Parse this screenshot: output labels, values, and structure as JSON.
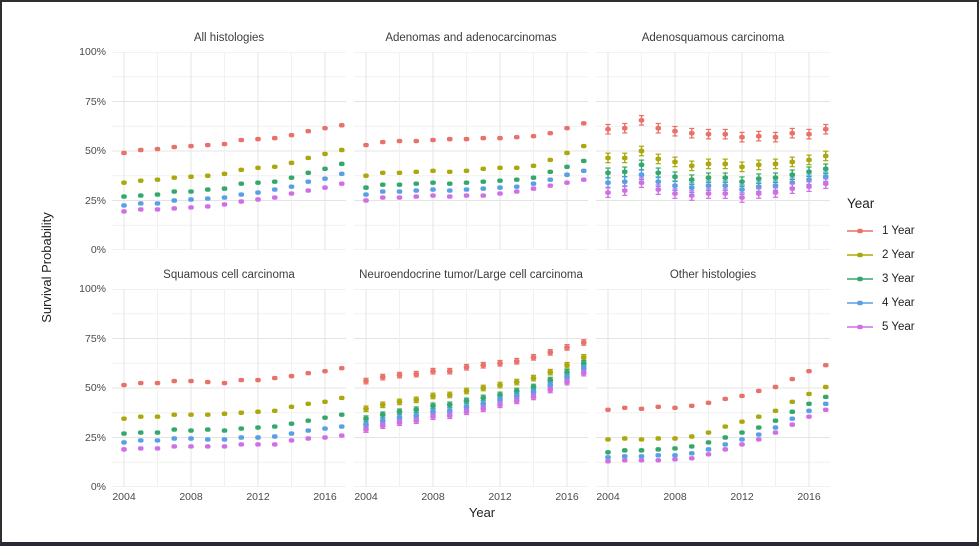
{
  "axes": {
    "y_label": "Survival Probability",
    "x_label": "Year",
    "y_tick_labels": [
      "100%",
      "75%",
      "50%",
      "25%",
      "0%"
    ],
    "x_tick_labels": [
      "2004",
      "2008",
      "2012",
      "2016"
    ]
  },
  "legend": {
    "title": "Year",
    "items": [
      {
        "label": "1 Year",
        "color": "#E8716A"
      },
      {
        "label": "2 Year",
        "color": "#ABA80D"
      },
      {
        "label": "3 Year",
        "color": "#34A76C"
      },
      {
        "label": "4 Year",
        "color": "#56A0E3"
      },
      {
        "label": "5 Year",
        "color": "#CF6FE4"
      }
    ]
  },
  "chart_data": {
    "type": "scatter",
    "x": [
      2004,
      2005,
      2006,
      2007,
      2008,
      2009,
      2010,
      2011,
      2012,
      2013,
      2014,
      2015,
      2016,
      2017
    ],
    "x_major_ticks": [
      2004,
      2008,
      2012,
      2016
    ],
    "ylim": [
      0,
      100
    ],
    "y_major_step": 25,
    "y_minor_step": 12.5,
    "grid": true,
    "legend_position": "right",
    "panels": [
      {
        "title": "All histologies",
        "row": 0,
        "col": 0,
        "error": 0,
        "series": [
          {
            "name": "1 Year",
            "values": [
              49,
              50.5,
              51,
              52,
              52.5,
              53,
              53.5,
              55.5,
              56,
              56.5,
              58,
              60,
              61.5,
              63
            ]
          },
          {
            "name": "2 Year",
            "values": [
              34,
              35,
              35.5,
              36.5,
              37,
              37.5,
              38.5,
              40.5,
              41.5,
              42,
              44,
              46.5,
              48.5,
              50.5
            ]
          },
          {
            "name": "3 Year",
            "values": [
              27,
              27.5,
              28,
              29.5,
              29.5,
              30.5,
              31,
              33.5,
              34,
              34.5,
              36.5,
              39,
              41,
              43.5
            ]
          },
          {
            "name": "4 Year",
            "values": [
              22.5,
              23.5,
              23.5,
              25,
              25.5,
              26,
              26.5,
              28,
              29,
              30.5,
              32,
              34.5,
              36,
              38.5
            ]
          },
          {
            "name": "5 Year",
            "values": [
              19.5,
              20.5,
              20.5,
              21,
              21.5,
              22,
              23,
              24.5,
              25.5,
              26.5,
              28.5,
              30,
              31.5,
              33.5
            ]
          }
        ]
      },
      {
        "title": "Adenomas and adenocarcinomas",
        "row": 0,
        "col": 1,
        "error": 0,
        "series": [
          {
            "name": "1 Year",
            "values": [
              53,
              54.5,
              55,
              55,
              55.5,
              56,
              56,
              56.5,
              56.5,
              57,
              57.5,
              59,
              61.5,
              64
            ]
          },
          {
            "name": "2 Year",
            "values": [
              37.5,
              39,
              39,
              39.5,
              40,
              39.5,
              40,
              41,
              41.5,
              41.5,
              42.5,
              45.5,
              49,
              52.5
            ]
          },
          {
            "name": "3 Year",
            "values": [
              31.5,
              33,
              33,
              33.5,
              34,
              33.5,
              34,
              34.5,
              35,
              35.5,
              36.5,
              39.5,
              42,
              45
            ]
          },
          {
            "name": "4 Year",
            "values": [
              28,
              29.5,
              29.5,
              30,
              30.5,
              30,
              30.5,
              31,
              31.5,
              32,
              33.5,
              35.5,
              38,
              40
            ]
          },
          {
            "name": "5 Year",
            "values": [
              25,
              26.5,
              26.5,
              27,
              27.5,
              27,
              27.5,
              27.5,
              28.5,
              29.5,
              31,
              32.5,
              34,
              35.5
            ]
          }
        ]
      },
      {
        "title": "Adenosquamous carcinoma",
        "row": 0,
        "col": 2,
        "error": 2.4,
        "series": [
          {
            "name": "1 Year",
            "values": [
              61,
              61.5,
              65.5,
              61.5,
              60,
              59,
              58.5,
              58.5,
              57,
              57.5,
              57,
              59,
              58.5,
              61
            ]
          },
          {
            "name": "2 Year",
            "values": [
              46.5,
              46.5,
              50,
              46,
              44.5,
              42.5,
              43.5,
              43.5,
              42,
              43,
              43.5,
              44.5,
              45.5,
              47.5
            ]
          },
          {
            "name": "3 Year",
            "values": [
              39,
              39.5,
              43,
              39,
              37,
              35.5,
              36.5,
              36.5,
              34.5,
              36,
              36.5,
              38,
              39.5,
              41
            ]
          },
          {
            "name": "4 Year",
            "values": [
              34,
              34.5,
              38,
              34.5,
              32.5,
              31.5,
              32.5,
              32.5,
              30.5,
              32,
              32.5,
              34,
              35.5,
              37
            ]
          },
          {
            "name": "5 Year",
            "values": [
              29,
              30,
              34,
              30.5,
              28.5,
              27.5,
              28.5,
              28.5,
              26.5,
              28.5,
              29,
              31,
              32,
              33.5
            ]
          }
        ]
      },
      {
        "title": "Squamous cell carcinoma",
        "row": 1,
        "col": 0,
        "error": 0,
        "series": [
          {
            "name": "1 Year",
            "values": [
              51.5,
              52.5,
              52.5,
              53.5,
              53.5,
              53,
              52.5,
              54,
              54,
              55,
              56,
              57.5,
              58.5,
              60
            ]
          },
          {
            "name": "2 Year",
            "values": [
              34.5,
              35.5,
              35.5,
              36.5,
              36.5,
              36.5,
              37,
              37.5,
              38,
              38.5,
              40.5,
              42,
              43,
              45
            ]
          },
          {
            "name": "3 Year",
            "values": [
              27,
              27.5,
              27.5,
              29,
              28.5,
              29,
              28.5,
              29.5,
              30,
              30.5,
              32,
              33.5,
              35,
              36.5
            ]
          },
          {
            "name": "4 Year",
            "values": [
              22.5,
              23.5,
              23.5,
              24.5,
              24.5,
              24,
              24,
              25,
              25,
              25.5,
              27,
              28.5,
              29.5,
              30.5
            ]
          },
          {
            "name": "5 Year",
            "values": [
              19,
              19.5,
              19.5,
              20.5,
              20.5,
              20.5,
              20.5,
              21.5,
              21.5,
              21.5,
              23.5,
              24.5,
              25,
              26
            ]
          }
        ]
      },
      {
        "title": "Neuroendocrine tumor/Large cell carcinoma",
        "row": 1,
        "col": 1,
        "error": 1.4,
        "series": [
          {
            "name": "1 Year",
            "values": [
              53.5,
              55.5,
              56.5,
              57,
              58.5,
              58.5,
              60.5,
              61.5,
              62.5,
              63.5,
              65.5,
              68,
              70.5,
              73
            ]
          },
          {
            "name": "2 Year",
            "values": [
              39.5,
              41.5,
              43,
              44,
              46,
              46.5,
              48.5,
              50,
              51.5,
              53,
              55,
              58,
              61.5,
              65.5
            ]
          },
          {
            "name": "3 Year",
            "values": [
              34.5,
              36.5,
              38,
              39,
              41,
              41.5,
              43.5,
              45,
              46.5,
              48.5,
              50.5,
              54,
              58,
              62.5
            ]
          },
          {
            "name": "4 Year",
            "values": [
              31.5,
              33.5,
              35,
              36,
              38,
              38.5,
              40.5,
              42,
              44,
              46,
              48,
              51.5,
              55.5,
              60
            ]
          },
          {
            "name": "5 Year",
            "values": [
              29,
              31,
              32.5,
              33.5,
              35.5,
              36,
              38,
              39.5,
              41.5,
              43.5,
              45.5,
              49,
              53,
              57.5
            ]
          }
        ]
      },
      {
        "title": "Other histologies",
        "row": 1,
        "col": 2,
        "error": 0,
        "series": [
          {
            "name": "1 Year",
            "values": [
              39,
              40,
              39.5,
              40.5,
              40,
              41,
              42.5,
              44.5,
              46,
              48.5,
              50.5,
              54.5,
              58.5,
              61.5
            ]
          },
          {
            "name": "2 Year",
            "values": [
              24,
              24.5,
              24,
              24.5,
              24.5,
              25.5,
              27.5,
              30.5,
              33,
              35.5,
              38.5,
              43,
              47,
              50.5
            ]
          },
          {
            "name": "3 Year",
            "values": [
              17.5,
              18.5,
              18.5,
              19,
              19.5,
              20.5,
              22.5,
              25,
              27.5,
              30,
              33.5,
              38,
              42,
              45.5
            ]
          },
          {
            "name": "4 Year",
            "values": [
              15,
              15.5,
              15.5,
              16,
              16,
              17,
              19,
              21.5,
              24,
              26.5,
              30,
              34.5,
              38.5,
              42
            ]
          },
          {
            "name": "5 Year",
            "values": [
              13,
              13.5,
              13.5,
              13.5,
              14,
              14.5,
              16.5,
              19,
              21.5,
              24,
              27.5,
              31.5,
              35.5,
              39
            ]
          }
        ]
      }
    ]
  }
}
